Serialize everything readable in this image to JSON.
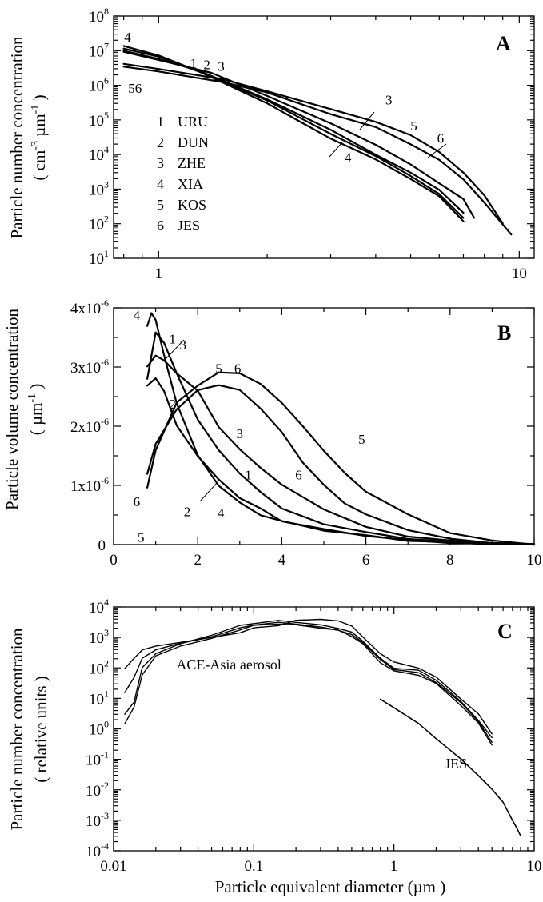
{
  "xaxis_title": {
    "prefix": "Particle equivalent diameter  (",
    "unit": "µm",
    "suffix": " )"
  },
  "colors": {
    "ink": "#000000",
    "background": "#ffffff"
  },
  "chart_data": [
    {
      "panel": "A",
      "type": "line",
      "y_scale": "log",
      "x_scale": "log",
      "xlim": [
        0.75,
        11
      ],
      "ylim": [
        10,
        100000000
      ],
      "ylabel_main": "Particle number concentration",
      "ylabel_units": {
        "open": "( cm",
        "exp1": "-3",
        "mid": " µm",
        "exp2": "-1",
        "close": " )"
      },
      "x_ticks": [
        {
          "v": 1,
          "label": "1"
        },
        {
          "v": 10,
          "label": "10"
        }
      ],
      "y_ticks": [
        {
          "v": 10,
          "base": "10",
          "exp": "1"
        },
        {
          "v": 100,
          "base": "10",
          "exp": "2"
        },
        {
          "v": 1000,
          "base": "10",
          "exp": "3"
        },
        {
          "v": 10000,
          "base": "10",
          "exp": "4"
        },
        {
          "v": 100000,
          "base": "10",
          "exp": "5"
        },
        {
          "v": 1000000,
          "base": "10",
          "exp": "6"
        },
        {
          "v": 10000000,
          "base": "10",
          "exp": "7"
        },
        {
          "v": 100000000,
          "base": "10",
          "exp": "8"
        }
      ],
      "legend": [
        {
          "num": "1",
          "name": "URU"
        },
        {
          "num": "2",
          "name": "DUN"
        },
        {
          "num": "3",
          "name": "ZHE"
        },
        {
          "num": "4",
          "name": "XIA"
        },
        {
          "num": "5",
          "name": "KOS"
        },
        {
          "num": "6",
          "name": "JES"
        }
      ],
      "series": [
        {
          "name": "1",
          "x": [
            0.8,
            1.0,
            1.3,
            2.0,
            3.0,
            4.0,
            5.0,
            6.0,
            7.0
          ],
          "y": [
            10000000,
            6000000,
            2500000,
            400000,
            50000,
            10000,
            3000,
            1000,
            200
          ]
        },
        {
          "name": "2",
          "x": [
            0.8,
            1.0,
            1.3,
            2.0,
            3.0,
            4.0,
            5.0,
            6.0,
            7.0
          ],
          "y": [
            12000000,
            6500000,
            2500000,
            350000,
            40000,
            9000,
            2500,
            700,
            150
          ]
        },
        {
          "name": "3",
          "x": [
            0.8,
            1.0,
            1.4,
            2.0,
            3.0,
            4.0,
            5.0,
            6.0,
            7.0,
            7.5
          ],
          "y": [
            9000000,
            5500000,
            2200000,
            500000,
            80000,
            20000,
            5000,
            1500,
            500,
            150
          ]
        },
        {
          "name": "4",
          "x": [
            0.8,
            1.0,
            1.3,
            2.0,
            3.0,
            4.0,
            5.0,
            6.0,
            7.0
          ],
          "y": [
            14000000,
            7000000,
            2500000,
            300000,
            30000,
            7000,
            2000,
            600,
            120
          ]
        },
        {
          "name": "5",
          "x": [
            0.8,
            1.0,
            1.5,
            2.0,
            3.0,
            4.0,
            5.0,
            6.0,
            7.0,
            8.0,
            9.0
          ],
          "y": [
            4000000,
            3000000,
            1500000,
            700000,
            200000,
            90000,
            35000,
            12000,
            3000,
            700,
            100
          ]
        },
        {
          "name": "6",
          "x": [
            0.8,
            1.0,
            1.5,
            2.0,
            3.0,
            4.0,
            5.0,
            6.0,
            7.0,
            8.0,
            9.5
          ],
          "y": [
            3500000,
            2500000,
            1300000,
            600000,
            150000,
            60000,
            20000,
            7000,
            2000,
            400,
            50
          ]
        }
      ],
      "curve_labels": [
        {
          "text": "4",
          "x": 0.82,
          "y": 18000000
        },
        {
          "text": "1",
          "x": 1.25,
          "y": 3200000
        },
        {
          "text": "2",
          "x": 1.36,
          "y": 2900000
        },
        {
          "text": "3",
          "x": 1.49,
          "y": 2600000
        },
        {
          "text": "56",
          "x": 0.86,
          "y": 600000
        },
        {
          "text": "3",
          "x": 4.35,
          "y": 280000
        },
        {
          "text": "5",
          "x": 5.1,
          "y": 50000
        },
        {
          "text": "6",
          "x": 6.05,
          "y": 22000
        },
        {
          "text": "4",
          "x": 3.35,
          "y": 6000
        }
      ]
    },
    {
      "panel": "B",
      "type": "line",
      "x_scale": "linear",
      "y_scale": "linear",
      "xlim": [
        0,
        10
      ],
      "ylim": [
        0,
        4e-06
      ],
      "ylabel_main": "Particle volume concentration",
      "ylabel_units": {
        "open": "( µm",
        "exp": "-1",
        "close": " )"
      },
      "x_ticks": [
        {
          "v": 0,
          "label": "0"
        },
        {
          "v": 2,
          "label": "2"
        },
        {
          "v": 4,
          "label": "4"
        },
        {
          "v": 6,
          "label": "6"
        },
        {
          "v": 8,
          "label": "8"
        },
        {
          "v": 10,
          "label": "10"
        }
      ],
      "y_ticks": [
        {
          "v": 0,
          "base": "0",
          "exp": ""
        },
        {
          "v": 1e-06,
          "base": "1x10",
          "exp": "-6"
        },
        {
          "v": 2e-06,
          "base": "2x10",
          "exp": "-6"
        },
        {
          "v": 3e-06,
          "base": "3x10",
          "exp": "-6"
        },
        {
          "v": 4e-06,
          "base": "4x10",
          "exp": "-6"
        }
      ],
      "series": [
        {
          "name": "1",
          "x": [
            0.8,
            1.0,
            1.2,
            1.5,
            2.0,
            2.5,
            3.0,
            3.5,
            4.0,
            5.0,
            6.0,
            7.0,
            8.0,
            9.0,
            10.0
          ],
          "y": [
            2.8e-06,
            3.6e-06,
            3.4e-06,
            2.9e-06,
            2.1e-06,
            1.6e-06,
            1.2e-06,
            9e-07,
            6e-07,
            3.5e-07,
            2e-07,
            1e-07,
            5e-08,
            2e-08,
            0.0
          ]
        },
        {
          "name": "2",
          "x": [
            0.8,
            1.0,
            1.2,
            1.5,
            2.0,
            2.5,
            3.0,
            3.5,
            4.0,
            5.0,
            6.0,
            7.0,
            8.0,
            9.0,
            10.0
          ],
          "y": [
            2.7e-06,
            2.8e-06,
            2.6e-06,
            2e-06,
            1.5e-06,
            1.1e-06,
            8e-07,
            6e-07,
            4e-07,
            2.5e-07,
            1.5e-07,
            8e-08,
            4e-08,
            2e-08,
            0.0
          ]
        },
        {
          "name": "3",
          "x": [
            0.8,
            1.0,
            1.2,
            1.5,
            2.0,
            2.5,
            3.0,
            3.5,
            4.0,
            5.0,
            6.0,
            7.0,
            8.0,
            9.0,
            10.0
          ],
          "y": [
            3e-06,
            3.2e-06,
            3.1e-06,
            2.9e-06,
            2.6e-06,
            2e-06,
            1.6e-06,
            1.3e-06,
            1e-06,
            6e-07,
            3e-07,
            1.5e-07,
            6e-08,
            3e-08,
            0.0
          ]
        },
        {
          "name": "4",
          "x": [
            0.8,
            0.9,
            1.0,
            1.2,
            1.5,
            2.0,
            2.5,
            3.0,
            3.5,
            4.0,
            5.0,
            6.0,
            7.0,
            8.0,
            9.0,
            10.0
          ],
          "y": [
            3.7e-06,
            3.9e-06,
            3.8e-06,
            3.2e-06,
            2.4e-06,
            1.5e-06,
            1e-06,
            7e-07,
            5e-07,
            4e-07,
            2.5e-07,
            1.5e-07,
            7e-08,
            3e-08,
            2e-08,
            0.0
          ]
        },
        {
          "name": "5",
          "x": [
            0.8,
            1.0,
            1.5,
            2.0,
            2.5,
            3.0,
            3.5,
            4.0,
            4.5,
            5.0,
            5.5,
            6.0,
            7.0,
            8.0,
            9.0,
            10.0
          ],
          "y": [
            9.5e-07,
            1.6e-06,
            2.4e-06,
            2.7e-06,
            2.9e-06,
            2.9e-06,
            2.7e-06,
            2.4e-06,
            2e-06,
            1.6e-06,
            1.2e-06,
            9e-07,
            5e-07,
            2e-07,
            7e-08,
            0.0
          ]
        },
        {
          "name": "6",
          "x": [
            0.8,
            1.0,
            1.5,
            2.0,
            2.5,
            3.0,
            3.5,
            4.0,
            4.5,
            5.0,
            5.5,
            6.0,
            7.0,
            8.0,
            9.0,
            10.0
          ],
          "y": [
            1.2e-06,
            1.7e-06,
            2.3e-06,
            2.6e-06,
            2.7e-06,
            2.6e-06,
            2.3e-06,
            1.9e-06,
            1.4e-06,
            1e-06,
            7e-07,
            5e-07,
            2.5e-07,
            1e-07,
            4e-08,
            0.0
          ]
        }
      ],
      "curve_labels": [
        {
          "text": "4",
          "x": 0.55,
          "y": 3.8e-06
        },
        {
          "text": "1",
          "x": 1.4,
          "y": 3.4e-06
        },
        {
          "text": "3",
          "x": 1.65,
          "y": 3.3e-06
        },
        {
          "text": "2",
          "x": 1.4,
          "y": 2.3e-06
        },
        {
          "text": "5",
          "x": 2.5,
          "y": 2.9e-06
        },
        {
          "text": "6",
          "x": 2.95,
          "y": 2.9e-06
        },
        {
          "text": "3",
          "x": 3.0,
          "y": 1.8e-06
        },
        {
          "text": "1",
          "x": 3.2,
          "y": 1.1e-06
        },
        {
          "text": "6",
          "x": 4.4,
          "y": 1.1e-06
        },
        {
          "text": "5",
          "x": 5.9,
          "y": 1.7e-06
        },
        {
          "text": "2",
          "x": 1.75,
          "y": 4.8e-07
        },
        {
          "text": "4",
          "x": 2.55,
          "y": 4.6e-07
        },
        {
          "text": "6",
          "x": 0.55,
          "y": 6.5e-07
        },
        {
          "text": "5",
          "x": 0.65,
          "y": 5e-08
        }
      ]
    },
    {
      "panel": "C",
      "type": "line",
      "x_scale": "log",
      "y_scale": "log",
      "xlim": [
        0.01,
        10
      ],
      "ylim": [
        0.0001,
        10000
      ],
      "ylabel_main": "Particle number concentration",
      "ylabel_units": "( relative units )",
      "x_ticks": [
        {
          "v": 0.01,
          "label": "0.01"
        },
        {
          "v": 0.1,
          "label": "0.1"
        },
        {
          "v": 1,
          "label": "1"
        },
        {
          "v": 10,
          "label": "10"
        }
      ],
      "y_ticks": [
        {
          "v": 0.0001,
          "base": "10",
          "exp": "-4"
        },
        {
          "v": 0.001,
          "base": "10",
          "exp": "-3"
        },
        {
          "v": 0.01,
          "base": "10",
          "exp": "-2"
        },
        {
          "v": 0.1,
          "base": "10",
          "exp": "-1"
        },
        {
          "v": 1,
          "base": "10",
          "exp": "0"
        },
        {
          "v": 10,
          "base": "10",
          "exp": "1"
        },
        {
          "v": 100,
          "base": "10",
          "exp": "2"
        },
        {
          "v": 1000,
          "base": "10",
          "exp": "3"
        },
        {
          "v": 10000,
          "base": "10",
          "exp": "4"
        }
      ],
      "annotations": [
        {
          "text": "ACE-Asia aerosol",
          "x": 0.028,
          "y": 90
        },
        {
          "text": "JES",
          "x": 2.3,
          "y": 0.05
        }
      ],
      "series": [
        {
          "name": "ACE-Asia aerosol",
          "x": [
            0.012,
            0.014,
            0.016,
            0.02,
            0.03,
            0.05,
            0.08,
            0.1,
            0.15,
            0.2,
            0.3,
            0.4,
            0.5,
            0.6,
            0.8,
            1.0,
            1.5,
            2.0,
            3.0,
            4.0,
            5.0
          ],
          "y": [
            3,
            8,
            100,
            300,
            600,
            1200,
            2500,
            3000,
            3500,
            3200,
            2500,
            2000,
            1500,
            800,
            200,
            100,
            80,
            40,
            8,
            2,
            0.5
          ]
        },
        {
          "name": "ACE-Asia aerosol",
          "x": [
            0.012,
            0.014,
            0.016,
            0.02,
            0.03,
            0.05,
            0.08,
            0.1,
            0.15,
            0.2,
            0.3,
            0.4,
            0.5,
            0.6,
            0.8,
            1.0,
            1.5,
            2.0,
            3.0,
            4.0,
            5.0
          ],
          "y": [
            100,
            200,
            400,
            500,
            700,
            1000,
            1500,
            2000,
            2500,
            3500,
            4000,
            3500,
            2500,
            1000,
            300,
            150,
            100,
            50,
            10,
            3,
            0.7
          ]
        },
        {
          "name": "ACE-Asia aerosol",
          "x": [
            0.012,
            0.014,
            0.016,
            0.02,
            0.03,
            0.05,
            0.08,
            0.1,
            0.15,
            0.2,
            0.3,
            0.4,
            0.5,
            0.6,
            0.8,
            1.0,
            1.5,
            2.0,
            3.0,
            4.0,
            5.0
          ],
          "y": [
            15,
            50,
            200,
            400,
            650,
            1100,
            2000,
            2600,
            3000,
            2800,
            2200,
            1800,
            1200,
            700,
            180,
            90,
            70,
            35,
            7,
            1.8,
            0.35
          ]
        },
        {
          "name": "ACE-Asia aerosol",
          "x": [
            0.012,
            0.014,
            0.016,
            0.02,
            0.03,
            0.05,
            0.08,
            0.1,
            0.15,
            0.2,
            0.3,
            0.4,
            0.5,
            0.6,
            0.8,
            1.0,
            1.5,
            2.0,
            3.0,
            4.0,
            5.0
          ],
          "y": [
            1.5,
            5,
            60,
            250,
            550,
            900,
            1800,
            2400,
            2800,
            2600,
            2100,
            1700,
            1100,
            600,
            150,
            80,
            60,
            30,
            6,
            1.5,
            0.3
          ]
        },
        {
          "name": "JES",
          "x": [
            0.8,
            1.0,
            1.5,
            2.0,
            3.0,
            4.0,
            5.0,
            6.0,
            7.0,
            7.5,
            8.0
          ],
          "y": [
            9,
            5,
            1.5,
            0.5,
            0.1,
            0.03,
            0.01,
            0.004,
            0.001,
            0.0006,
            0.0003
          ]
        }
      ]
    }
  ]
}
